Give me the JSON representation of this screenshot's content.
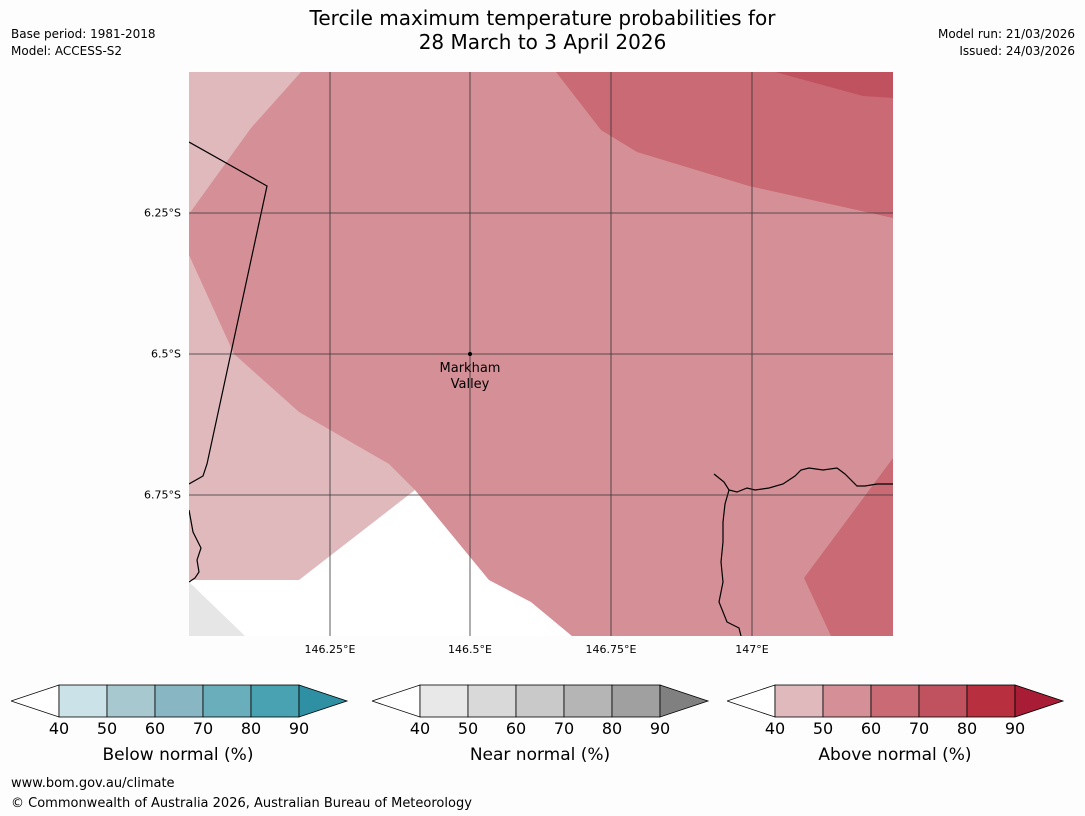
{
  "header": {
    "title_line1": "Tercile maximum temperature probabilities for",
    "title_line2": "28 March to 3 April 2026",
    "base_period": "Base period: 1981-2018",
    "model": "Model: ACCESS-S2",
    "model_run": "Model run: 21/03/2026",
    "issued": "Issued: 24/03/2026"
  },
  "map": {
    "latitude_labels": [
      "6.25°S",
      "6.5°S",
      "6.75°S"
    ],
    "longitude_labels": [
      "146.25°E",
      "146.5°E",
      "146.75°E",
      "147°E"
    ],
    "place_label_line1": "Markham",
    "place_label_line2": "Valley"
  },
  "legends": [
    {
      "label": "Below normal (%)",
      "ticks": [
        "40",
        "50",
        "60",
        "70",
        "80",
        "90"
      ],
      "colors": [
        "#ffffff",
        "#cbe3e8",
        "#a6c8ce",
        "#89b6c3",
        "#6aadbb",
        "#49a2b1",
        "#2f90a3"
      ]
    },
    {
      "label": "Near normal (%)",
      "ticks": [
        "40",
        "50",
        "60",
        "70",
        "80",
        "90"
      ],
      "colors": [
        "#ffffff",
        "#e8e8e8",
        "#d9d9d9",
        "#c9c9c9",
        "#b5b5b5",
        "#a0a0a0",
        "#808080"
      ]
    },
    {
      "label": "Above normal (%)",
      "ticks": [
        "40",
        "50",
        "60",
        "70",
        "80",
        "90"
      ],
      "colors": [
        "#ffffff",
        "#e0b9bd",
        "#d59097",
        "#c96a74",
        "#c0525f",
        "#b8303f",
        "#a81c35"
      ]
    }
  ],
  "footer": {
    "url": "www.bom.gov.au/climate",
    "copyright": "© Commonwealth of Australia 2026, Australian Bureau of Meteorology"
  }
}
